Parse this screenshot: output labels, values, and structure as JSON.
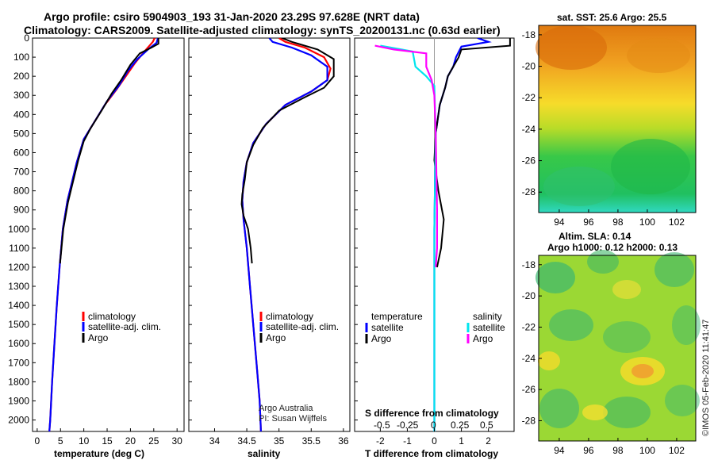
{
  "header": {
    "title_line1": "Argo profile: csiro 5904903_193 31-Jan-2020 23.29S 97.628E (NRT data)",
    "title_line2": "Climatology: CARS2009. Satellite-adjusted climatology: synTS_20200131.nc (0.63d earlier)"
  },
  "colors": {
    "climatology": "#ff0000",
    "satellite": "#0000ff",
    "argo": "#000000",
    "sat_salinity": "#00e5ee",
    "argo_salinity": "#ff00ff"
  },
  "depth_axis": {
    "ticks": [
      "0",
      "100",
      "200",
      "300",
      "400",
      "500",
      "600",
      "700",
      "800",
      "900",
      "1000",
      "1100",
      "1200",
      "1300",
      "1400",
      "1500",
      "1600",
      "1700",
      "1800",
      "1900",
      "2000"
    ],
    "range": [
      0,
      2060
    ]
  },
  "chart_data": [
    {
      "type": "line",
      "name": "temperature",
      "xlabel": "temperature (deg C)",
      "xlim": [
        -1,
        31.5
      ],
      "xticks": [
        "0",
        "5",
        "10",
        "15",
        "20",
        "25",
        "30"
      ],
      "legend": [
        "climatology",
        "satellite-adj. clim.",
        "Argo"
      ],
      "series": [
        {
          "name": "climatology",
          "color": "#ff0000",
          "points": [
            [
              25.2,
              0
            ],
            [
              24.8,
              20
            ],
            [
              23,
              70
            ],
            [
              21,
              130
            ],
            [
              19,
              200
            ],
            [
              17,
              270
            ],
            [
              14.5,
              350
            ],
            [
              12,
              450
            ],
            [
              10,
              530
            ],
            [
              8.5,
              650
            ],
            [
              7.5,
              750
            ],
            [
              6.5,
              850
            ],
            [
              5.5,
              1000
            ],
            [
              4.8,
              1200
            ],
            [
              4.2,
              1400
            ],
            [
              3.7,
              1600
            ],
            [
              3.2,
              1800
            ],
            [
              2.8,
              2000
            ],
            [
              2.6,
              2060
            ]
          ]
        },
        {
          "name": "satellite-adj. clim.",
          "color": "#0000ff",
          "points": [
            [
              25.9,
              0
            ],
            [
              25.6,
              25
            ],
            [
              24,
              55
            ],
            [
              21.5,
              110
            ],
            [
              19.5,
              170
            ],
            [
              17.5,
              250
            ],
            [
              15,
              330
            ],
            [
              12,
              450
            ],
            [
              10,
              530
            ],
            [
              8.5,
              650
            ],
            [
              7.5,
              750
            ],
            [
              6.5,
              850
            ],
            [
              5.5,
              1000
            ],
            [
              4.8,
              1200
            ],
            [
              4.2,
              1400
            ],
            [
              3.7,
              1600
            ],
            [
              3.2,
              1800
            ],
            [
              2.8,
              2000
            ],
            [
              2.6,
              2060
            ]
          ]
        },
        {
          "name": "Argo",
          "color": "#000000",
          "points": [
            [
              26,
              0
            ],
            [
              26,
              30
            ],
            [
              24.5,
              50
            ],
            [
              22,
              80
            ],
            [
              20,
              140
            ],
            [
              18,
              220
            ],
            [
              16,
              290
            ],
            [
              13.8,
              380
            ],
            [
              11.5,
              470
            ],
            [
              10,
              540
            ],
            [
              8.8,
              640
            ],
            [
              7.8,
              740
            ],
            [
              6.6,
              860
            ],
            [
              5.6,
              1000
            ],
            [
              4.9,
              1180
            ]
          ]
        }
      ]
    },
    {
      "type": "line",
      "name": "salinity",
      "xlabel": "salinity",
      "xlim": [
        33.6,
        36.1
      ],
      "xticks": [
        "34",
        "34.5",
        "35",
        "35.5",
        "36"
      ],
      "legend": [
        "climatology",
        "satellite-adj. clim.",
        "Argo"
      ],
      "annotation": [
        "Argo Australia",
        "PI: Susan Wijffels"
      ],
      "series": [
        {
          "name": "climatology",
          "color": "#ff0000",
          "points": [
            [
              35.0,
              0
            ],
            [
              35.1,
              20
            ],
            [
              35.4,
              50
            ],
            [
              35.7,
              100
            ],
            [
              35.8,
              160
            ],
            [
              35.75,
              220
            ],
            [
              35.5,
              280
            ],
            [
              35.1,
              350
            ],
            [
              34.8,
              450
            ],
            [
              34.6,
              550
            ],
            [
              34.5,
              650
            ],
            [
              34.45,
              750
            ],
            [
              34.43,
              850
            ],
            [
              34.45,
              950
            ],
            [
              34.5,
              1100
            ],
            [
              34.55,
              1300
            ],
            [
              34.6,
              1500
            ],
            [
              34.65,
              1700
            ],
            [
              34.7,
              1900
            ],
            [
              34.72,
              2060
            ]
          ]
        },
        {
          "name": "satellite-adj. clim.",
          "color": "#0000ff",
          "points": [
            [
              34.85,
              0
            ],
            [
              34.9,
              20
            ],
            [
              35.2,
              50
            ],
            [
              35.5,
              90
            ],
            [
              35.75,
              150
            ],
            [
              35.75,
              220
            ],
            [
              35.5,
              280
            ],
            [
              35.1,
              350
            ],
            [
              34.8,
              450
            ],
            [
              34.6,
              550
            ],
            [
              34.5,
              650
            ],
            [
              34.45,
              750
            ],
            [
              34.43,
              850
            ],
            [
              34.45,
              950
            ],
            [
              34.5,
              1100
            ],
            [
              34.55,
              1300
            ],
            [
              34.6,
              1500
            ],
            [
              34.65,
              1700
            ],
            [
              34.7,
              1900
            ],
            [
              34.72,
              2060
            ]
          ]
        },
        {
          "name": "Argo",
          "color": "#000000",
          "points": [
            [
              35.05,
              0
            ],
            [
              35.2,
              20
            ],
            [
              35.6,
              60
            ],
            [
              35.85,
              110
            ],
            [
              35.85,
              160
            ],
            [
              35.85,
              200
            ],
            [
              35.7,
              260
            ],
            [
              35.4,
              310
            ],
            [
              35.0,
              380
            ],
            [
              34.75,
              470
            ],
            [
              34.6,
              560
            ],
            [
              34.5,
              650
            ],
            [
              34.47,
              740
            ],
            [
              34.43,
              820
            ],
            [
              34.42,
              870
            ],
            [
              34.45,
              930
            ],
            [
              34.52,
              1000
            ],
            [
              34.56,
              1100
            ],
            [
              34.58,
              1180
            ]
          ]
        }
      ]
    },
    {
      "type": "line",
      "name": "difference",
      "xlabel": "T difference from climatology",
      "xlabel_top": "S difference from climatology",
      "xlim": [
        -2.95,
        2.95
      ],
      "xticks": [
        "-2",
        "-1",
        "0",
        "1",
        "2"
      ],
      "s_ticks": [
        "-0.5",
        "-0.25",
        "0",
        "0.25",
        "0.5"
      ],
      "legend_left_title": "temperature",
      "legend_right_title": "salinity",
      "legend_left": [
        "satellite",
        "Argo"
      ],
      "legend_right": [
        "satellite",
        "Argo"
      ],
      "series": [
        {
          "name": "T satellite",
          "color": "#0000ff",
          "points": [
            [
              1.6,
              0
            ],
            [
              2.0,
              20
            ],
            [
              1.0,
              45
            ],
            [
              0.8,
              100
            ],
            [
              0.7,
              150
            ],
            [
              0.5,
              200
            ],
            [
              0.4,
              260
            ],
            [
              0.2,
              350
            ],
            [
              0.05,
              500
            ],
            [
              0.0,
              1000
            ],
            [
              0.0,
              2060
            ]
          ]
        },
        {
          "name": "T Argo",
          "color": "#000000",
          "points": [
            [
              2.8,
              0
            ],
            [
              2.8,
              40
            ],
            [
              1.0,
              60
            ],
            [
              0.9,
              100
            ],
            [
              0.7,
              150
            ],
            [
              0.5,
              200
            ],
            [
              0.4,
              260
            ],
            [
              0.2,
              350
            ],
            [
              0.05,
              500
            ],
            [
              0.0,
              640
            ],
            [
              0.15,
              800
            ],
            [
              0.35,
              950
            ],
            [
              0.25,
              1100
            ],
            [
              0.1,
              1200
            ]
          ]
        },
        {
          "name": "S satellite",
          "color": "#00e5ee",
          "points": [
            [
              -2.0,
              40
            ],
            [
              -0.8,
              70
            ],
            [
              -0.7,
              150
            ],
            [
              -0.3,
              200
            ],
            [
              0.0,
              250
            ],
            [
              0.05,
              500
            ],
            [
              0.0,
              1000
            ],
            [
              0.0,
              2060
            ]
          ]
        },
        {
          "name": "S Argo",
          "color": "#ff00ff",
          "points": [
            [
              -2.2,
              40
            ],
            [
              -1.5,
              60
            ],
            [
              -0.3,
              80
            ],
            [
              -0.3,
              150
            ],
            [
              -0.1,
              220
            ],
            [
              0.0,
              300
            ],
            [
              0.05,
              500
            ],
            [
              0.1,
              900
            ],
            [
              0.1,
              1100
            ],
            [
              0.05,
              1200
            ]
          ]
        }
      ]
    },
    {
      "type": "heatmap",
      "name": "sst-map",
      "title": "sat. SST: 25.6  Argo: 25.5",
      "xticks": [
        "94",
        "96",
        "98",
        "100",
        "102"
      ],
      "yticks": [
        "-18",
        "-20",
        "-22",
        "-24",
        "-26",
        "-28"
      ]
    },
    {
      "type": "heatmap",
      "name": "sla-map",
      "title_line1": "Altim. SLA: 0.14",
      "title_line2": "Argo h1000: 0.12 h2000: 0.13",
      "xticks": [
        "94",
        "96",
        "98",
        "100",
        "102"
      ],
      "yticks": [
        "-18",
        "-20",
        "-22",
        "-24",
        "-26",
        "-28"
      ]
    }
  ],
  "watermark": "©IMOS 05-Feb-2020 11:41:47"
}
